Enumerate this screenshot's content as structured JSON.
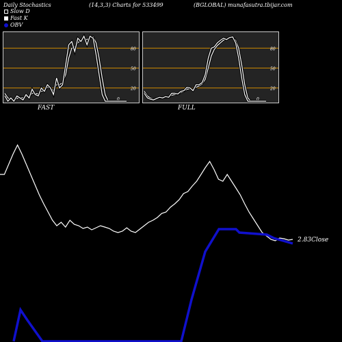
{
  "header": {
    "left": "Daily Stochastics",
    "center": "(14,3,3) Charts for 533499",
    "right": "(BGLOBAL) munafasutra.tbijar.com"
  },
  "legend": [
    {
      "label": "Slow  D",
      "icon": "hollow-square-icon",
      "color": "#ffffff"
    },
    {
      "label": "Fast K",
      "icon": "white-square-icon",
      "color": "#ffffff"
    },
    {
      "label": "OBV",
      "icon": "blue-dot-icon",
      "color": "#0000ff"
    }
  ],
  "colors": {
    "background": "#000000",
    "panel": "#242424",
    "guide": "#cc8800",
    "price": "#ffffff",
    "obv": "#1010cc"
  },
  "chart_data": [
    {
      "type": "line",
      "panel_label": "FAST",
      "ylim": [
        0,
        100
      ],
      "yticks": [
        80,
        50,
        20,
        0
      ],
      "tick_labels": [
        "80",
        "50",
        "20",
        "0"
      ],
      "guides": [
        80,
        50,
        20
      ],
      "fast_k": [
        8,
        0,
        5,
        0,
        8,
        5,
        2,
        10,
        5,
        18,
        10,
        8,
        20,
        15,
        25,
        20,
        10,
        35,
        20,
        25,
        55,
        85,
        90,
        75,
        95,
        90,
        98,
        85,
        98,
        95,
        70,
        40,
        10,
        0,
        0,
        0,
        0,
        0,
        0,
        0,
        0
      ],
      "slow_d": [
        12,
        5,
        3,
        2,
        4,
        6,
        5,
        7,
        6,
        12,
        12,
        11,
        15,
        16,
        21,
        20,
        16,
        25,
        25,
        28,
        40,
        65,
        80,
        82,
        88,
        92,
        95,
        93,
        96,
        97,
        88,
        65,
        35,
        10,
        0,
        0,
        0,
        0,
        0,
        0,
        0
      ]
    },
    {
      "type": "line",
      "panel_label": "FULL",
      "ylim": [
        0,
        100
      ],
      "yticks": [
        80,
        50,
        20,
        0
      ],
      "tick_labels": [
        "80",
        "50",
        "20",
        "0"
      ],
      "guides": [
        80,
        50,
        20
      ],
      "fast_k": [
        12,
        5,
        3,
        2,
        4,
        6,
        5,
        7,
        6,
        12,
        12,
        11,
        15,
        16,
        21,
        20,
        16,
        25,
        25,
        28,
        40,
        65,
        80,
        82,
        88,
        92,
        95,
        93,
        96,
        97,
        88,
        65,
        35,
        10,
        0,
        0,
        0,
        0,
        0,
        0,
        0
      ],
      "slow_d": [
        15,
        8,
        5,
        3,
        4,
        5,
        5,
        6,
        6,
        9,
        10,
        11,
        13,
        15,
        18,
        19,
        18,
        21,
        23,
        26,
        33,
        50,
        68,
        78,
        84,
        88,
        92,
        94,
        95,
        96,
        92,
        80,
        55,
        25,
        5,
        0,
        0,
        0,
        0,
        0,
        0
      ]
    },
    {
      "type": "line",
      "close_label": "2.83Close",
      "price": [
        255,
        255,
        240,
        225,
        212,
        225,
        240,
        255,
        270,
        285,
        298,
        310,
        322,
        330,
        325,
        332,
        322,
        328,
        330,
        334,
        332,
        336,
        333,
        330,
        332,
        334,
        338,
        340,
        338,
        333,
        338,
        340,
        335,
        330,
        325,
        322,
        318,
        312,
        310,
        303,
        298,
        292,
        283,
        280,
        272,
        265,
        255,
        245,
        236,
        248,
        262,
        265,
        255,
        265,
        275,
        285,
        298,
        310,
        320,
        330,
        340,
        345,
        350,
        352,
        348,
        349,
        351,
        350
      ]
    }
  ]
}
